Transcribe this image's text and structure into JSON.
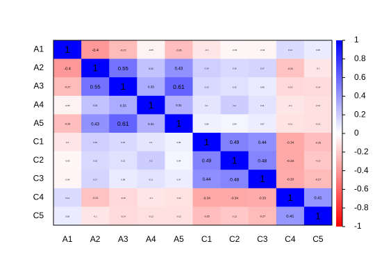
{
  "chart_data": {
    "type": "heatmap",
    "x_categories": [
      "A1",
      "A2",
      "A3",
      "A4",
      "A5",
      "C1",
      "C2",
      "C3",
      "C4",
      "C5"
    ],
    "y_categories": [
      "A1",
      "A2",
      "A3",
      "A4",
      "A5",
      "C1",
      "C2",
      "C3",
      "C4",
      "C5"
    ],
    "values": [
      [
        1,
        -0.4,
        -0.27,
        -0.05,
        -0.26,
        -0.1,
        -0.03,
        -0.04,
        0.14,
        0.08
      ],
      [
        -0.4,
        1,
        0.55,
        0.24,
        0.43,
        0.19,
        0.15,
        0.17,
        -0.24,
        -0.1
      ],
      [
        -0.27,
        0.55,
        1,
        0.33,
        0.61,
        0.15,
        0.12,
        0.08,
        -0.15,
        -0.14
      ],
      [
        -0.05,
        0.24,
        0.33,
        1,
        0.31,
        0.1,
        0.2,
        0.11,
        -0.1,
        -0.12
      ],
      [
        -0.26,
        0.43,
        0.61,
        0.31,
        1,
        0.06,
        0.04,
        0.07,
        -0.11,
        -0.12
      ],
      [
        -0.1,
        0.19,
        0.15,
        0.1,
        0.06,
        1,
        0.49,
        0.44,
        -0.34,
        -0.26
      ],
      [
        -0.03,
        0.15,
        0.12,
        0.2,
        0.04,
        0.49,
        1,
        0.48,
        -0.34,
        -0.22
      ],
      [
        -0.04,
        0.17,
        0.08,
        0.11,
        0.07,
        0.44,
        0.48,
        1,
        -0.33,
        -0.27
      ],
      [
        0.14,
        -0.24,
        -0.15,
        -0.1,
        -0.11,
        -0.34,
        -0.34,
        -0.33,
        1,
        0.41
      ],
      [
        0.08,
        -0.1,
        -0.14,
        -0.12,
        -0.12,
        -0.26,
        -0.22,
        -0.27,
        0.41,
        1
      ]
    ],
    "colormap": [
      "#ff0000",
      "#ffffff",
      "#0000ff"
    ],
    "clim": [
      -1,
      1
    ],
    "cticks": [
      -1,
      -0.8,
      -0.6,
      -0.4,
      -0.2,
      0,
      0.2,
      0.4,
      0.6,
      0.8,
      1
    ]
  }
}
